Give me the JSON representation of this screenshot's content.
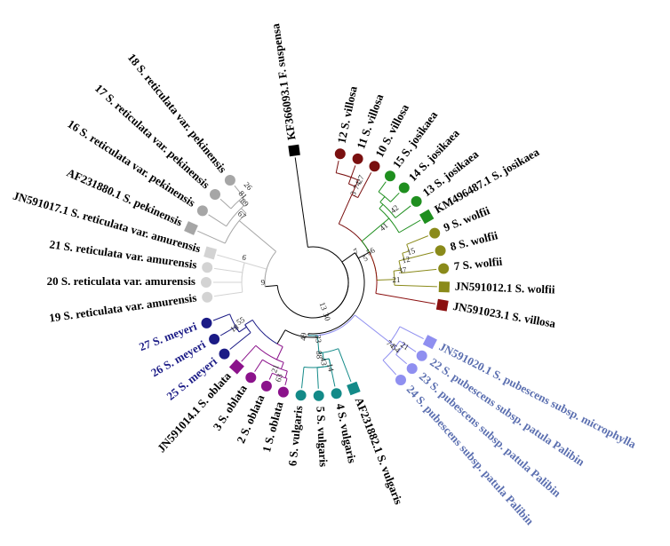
{
  "palette": {
    "black": "#000000",
    "red": "#7a1010",
    "green": "#1f8f1f",
    "olive": "#8a8a1a",
    "darkred": "#8b1010",
    "lavender": "#8f8ff0",
    "purple": "#8b128b",
    "teal": "#138a88",
    "navy": "#1b1b86",
    "gray": "#a6a6a6",
    "lightgray": "#d3d3d3",
    "bluelabel": "#5b6fb0",
    "navylabel": "#1b1b86"
  },
  "leaves": [
    {
      "label": "KF366093.1 F. suspensa",
      "marker": "square",
      "color": "black"
    },
    {
      "label": "12 S. villosa",
      "marker": "circle",
      "color": "red"
    },
    {
      "label": "11 S. villosa",
      "marker": "circle",
      "color": "red"
    },
    {
      "label": "10 S. villosa",
      "marker": "circle",
      "color": "red"
    },
    {
      "label": "15 S. josikaea",
      "marker": "circle",
      "color": "green"
    },
    {
      "label": "14 S. josikaea",
      "marker": "circle",
      "color": "green"
    },
    {
      "label": "13 S. josikaea",
      "marker": "circle",
      "color": "green"
    },
    {
      "label": "KM496487.1 S. josikaea",
      "marker": "square",
      "color": "green"
    },
    {
      "label": "9 S. wolfii",
      "marker": "circle",
      "color": "olive"
    },
    {
      "label": "8 S. wolfii",
      "marker": "circle",
      "color": "olive"
    },
    {
      "label": "7 S. wolfii",
      "marker": "circle",
      "color": "olive"
    },
    {
      "label": "JN591012.1 S. wolfii",
      "marker": "square",
      "color": "olive"
    },
    {
      "label": "JN591023.1 S. villosa",
      "marker": "square",
      "color": "darkred"
    },
    {
      "label": "JN591020.1 S. pubescens subsp. microphylla",
      "marker": "square",
      "color": "lavender",
      "text_color": "bluelabel"
    },
    {
      "label": "22 S. pubescens subsp. patula Palibin",
      "marker": "circle",
      "color": "lavender",
      "text_color": "bluelabel"
    },
    {
      "label": "23 S. pubescens subsp. patula Palibin",
      "marker": "circle",
      "color": "lavender",
      "text_color": "bluelabel"
    },
    {
      "label": "24 S. pubescens subsp. patula Palibin",
      "marker": "circle",
      "color": "lavender",
      "text_color": "bluelabel"
    },
    {
      "label": "AF231882.1 S. vulgaris",
      "marker": "square",
      "color": "teal"
    },
    {
      "label": "4 S. vulgaris",
      "marker": "circle",
      "color": "teal"
    },
    {
      "label": "5 S. vulgaris",
      "marker": "circle",
      "color": "teal"
    },
    {
      "label": "6 S. vulgaris",
      "marker": "circle",
      "color": "teal"
    },
    {
      "label": "1 S. oblata",
      "marker": "circle",
      "color": "purple"
    },
    {
      "label": "2 S. oblata",
      "marker": "circle",
      "color": "purple"
    },
    {
      "label": "3 S. oblata",
      "marker": "circle",
      "color": "purple"
    },
    {
      "label": "JN591014.1 S. oblata",
      "marker": "square",
      "color": "purple"
    },
    {
      "label": "25 S. meyeri",
      "marker": "circle",
      "color": "navy",
      "text_color": "navylabel"
    },
    {
      "label": "26 S. meyeri",
      "marker": "circle",
      "color": "navy",
      "text_color": "navylabel"
    },
    {
      "label": "27 S. meyeri",
      "marker": "circle",
      "color": "navy",
      "text_color": "navylabel"
    },
    {
      "label": "19 S. reticulata var. amurensis",
      "marker": "circle",
      "color": "lightgray"
    },
    {
      "label": "20 S. reticulata var. amurensis",
      "marker": "circle",
      "color": "lightgray"
    },
    {
      "label": "21 S. reticulata var. amurensis",
      "marker": "circle",
      "color": "lightgray"
    },
    {
      "label": "JN591017.1 S. reticulata var. amurensis",
      "marker": "square",
      "color": "lightgray"
    },
    {
      "label": "AF231880.1 S. pekinensis",
      "marker": "square",
      "color": "gray"
    },
    {
      "label": "16 S. reticulata var. pekinensis",
      "marker": "circle",
      "color": "gray"
    },
    {
      "label": "17 S. reticulata var. pekinensis",
      "marker": "circle",
      "color": "gray"
    },
    {
      "label": "18 S. reticulata var. pekinensis",
      "marker": "circle",
      "color": "gray"
    }
  ],
  "node_values": [
    "27",
    "74",
    "3",
    "41",
    "15",
    "12",
    "37",
    "21",
    "42",
    "56",
    "5",
    "7",
    "74",
    "54",
    "21",
    "33",
    "88",
    "43",
    "14",
    "21",
    "63",
    "49",
    "30",
    "18",
    "55",
    "9",
    "13",
    "6",
    "67",
    "89",
    "81",
    "26"
  ]
}
